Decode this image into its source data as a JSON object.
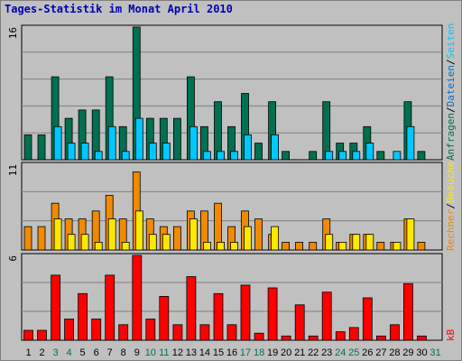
{
  "title": "Tages-Statistik im Monat April 2010",
  "colors": {
    "background": "#c0c0c0",
    "plot_bg": "#c0c0c0",
    "grid": "#808080",
    "axis": "#000000",
    "visits": "#007050",
    "hits": "#00c8ff",
    "files": "#0070c0",
    "pages": "#ffe800",
    "visitors": "#f08a00",
    "kb": "#ff0000",
    "title": "#0000b0",
    "weekend_label": "#007050",
    "weekday_label": "#000000"
  },
  "chart_data": [
    {
      "type": "bar",
      "panel": "top",
      "ymax_label": "16",
      "ymax": 16,
      "categories": [
        "1",
        "2",
        "3",
        "4",
        "5",
        "6",
        "7",
        "8",
        "9",
        "10",
        "11",
        "12",
        "13",
        "14",
        "15",
        "16",
        "17",
        "18",
        "19",
        "20",
        "21",
        "22",
        "23",
        "24",
        "25",
        "26",
        "27",
        "28",
        "29",
        "30",
        "31"
      ],
      "weekend_days": [
        "3",
        "4",
        "10",
        "11",
        "17",
        "18",
        "24",
        "25",
        "31"
      ],
      "series": [
        {
          "name": "Anfragen",
          "color_key": "visits",
          "values": [
            3,
            3,
            10,
            5,
            6,
            6,
            10,
            4,
            16,
            5,
            5,
            5,
            10,
            4,
            7,
            4,
            8,
            2,
            7,
            1,
            0,
            1,
            7,
            2,
            2,
            4,
            1,
            0,
            7,
            1,
            0
          ]
        },
        {
          "name": "Dateien",
          "color_key": "hits",
          "values": [
            0,
            0,
            4,
            2,
            2,
            1,
            4,
            1,
            5,
            2,
            2,
            0,
            4,
            1,
            1,
            1,
            3,
            0,
            3,
            0,
            0,
            0,
            1,
            1,
            1,
            2,
            0,
            1,
            4,
            0,
            0
          ]
        }
      ],
      "legend": [
        "Anfragen",
        "/",
        "Dateien",
        "/",
        "Seiten"
      ]
    },
    {
      "type": "bar",
      "panel": "middle",
      "ymax_label": "11",
      "ymax": 11,
      "categories": [
        "1",
        "2",
        "3",
        "4",
        "5",
        "6",
        "7",
        "8",
        "9",
        "10",
        "11",
        "12",
        "13",
        "14",
        "15",
        "16",
        "17",
        "18",
        "19",
        "20",
        "21",
        "22",
        "23",
        "24",
        "25",
        "26",
        "27",
        "28",
        "29",
        "30",
        "31"
      ],
      "series": [
        {
          "name": "Besuche",
          "color_key": "visitors",
          "values": [
            3,
            3,
            6,
            4,
            4,
            5,
            7,
            4,
            10,
            4,
            3,
            3,
            5,
            5,
            6,
            3,
            5,
            4,
            2,
            1,
            1,
            1,
            4,
            1,
            2,
            2,
            1,
            1,
            4,
            1,
            0
          ]
        },
        {
          "name": "Rechner",
          "color_key": "pages",
          "values": [
            0,
            0,
            4,
            2,
            2,
            1,
            4,
            1,
            5,
            2,
            2,
            0,
            4,
            1,
            1,
            1,
            3,
            0,
            3,
            0,
            0,
            0,
            2,
            1,
            2,
            2,
            0,
            1,
            4,
            0,
            0
          ]
        }
      ],
      "legend": [
        "Rechner",
        "/",
        "Besuche"
      ]
    },
    {
      "type": "bar",
      "panel": "bottom",
      "ymax_label": "6",
      "ymax": 6,
      "categories": [
        "1",
        "2",
        "3",
        "4",
        "5",
        "6",
        "7",
        "8",
        "9",
        "10",
        "11",
        "12",
        "13",
        "14",
        "15",
        "16",
        "17",
        "18",
        "19",
        "20",
        "21",
        "22",
        "23",
        "24",
        "25",
        "26",
        "27",
        "28",
        "29",
        "30",
        "31"
      ],
      "series": [
        {
          "name": "kB",
          "color_key": "kb",
          "values": [
            0.7,
            0.7,
            4.6,
            1.5,
            3.3,
            1.5,
            4.6,
            1.1,
            6.0,
            1.5,
            3.1,
            1.1,
            4.5,
            1.1,
            3.3,
            1.1,
            3.9,
            0.5,
            3.7,
            0.3,
            2.5,
            0.3,
            3.4,
            0.6,
            0.9,
            3.0,
            0.3,
            1.1,
            4.0,
            0.3,
            0
          ]
        }
      ],
      "legend": [
        "kB"
      ]
    }
  ]
}
